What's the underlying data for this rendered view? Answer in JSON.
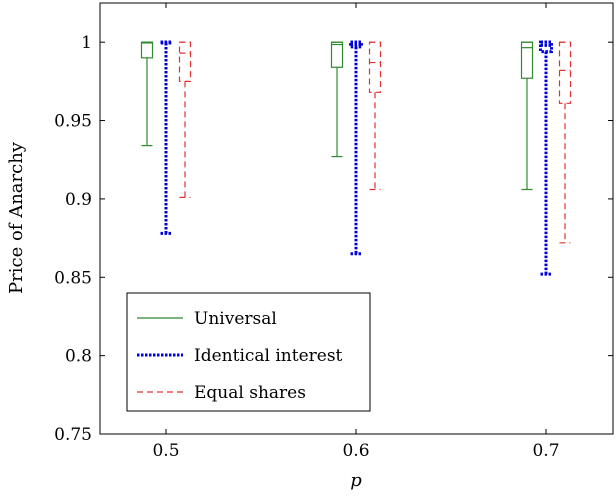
{
  "chart_data": {
    "type": "boxplot",
    "xlabel": "p",
    "ylabel": "Price of Anarchy",
    "ylim": [
      0.75,
      1.025
    ],
    "yticks": [
      0.75,
      0.8,
      0.85,
      0.9,
      0.95,
      1
    ],
    "ytick_labels": [
      "0.75",
      "0.8",
      "0.85",
      "0.9",
      "0.95",
      "1"
    ],
    "categories": [
      "0.5",
      "0.6",
      "0.7"
    ],
    "legend_position": "bottom-left",
    "series": [
      {
        "name": "Universal",
        "color": "#2e8b2e",
        "line_style": "solid",
        "boxes": [
          {
            "min": 0.934,
            "q1": 0.99,
            "median": 0.9995,
            "q3": 1.0,
            "max": 1.0
          },
          {
            "min": 0.927,
            "q1": 0.984,
            "median": 0.9985,
            "q3": 1.0,
            "max": 1.0
          },
          {
            "min": 0.906,
            "q1": 0.977,
            "median": 0.9965,
            "q3": 1.0,
            "max": 1.0
          }
        ]
      },
      {
        "name": "Identical interest",
        "color": "#0000dd",
        "line_style": "dotted",
        "boxes": [
          {
            "min": 0.878,
            "q1": 0.9995,
            "median": 0.9998,
            "q3": 1.0,
            "max": 1.0
          },
          {
            "min": 0.865,
            "q1": 0.997,
            "median": 0.9985,
            "q3": 1.0,
            "max": 1.0
          },
          {
            "min": 0.852,
            "q1": 0.994,
            "median": 0.998,
            "q3": 1.0,
            "max": 1.0
          }
        ]
      },
      {
        "name": "Equal shares",
        "color": "#e03030",
        "line_style": "dashed",
        "boxes": [
          {
            "min": 0.901,
            "q1": 0.975,
            "median": 0.993,
            "q3": 1.0,
            "max": 1.0
          },
          {
            "min": 0.906,
            "q1": 0.968,
            "median": 0.987,
            "q3": 1.0,
            "max": 1.0
          },
          {
            "min": 0.872,
            "q1": 0.961,
            "median": 0.982,
            "q3": 1.0,
            "max": 1.0
          }
        ]
      }
    ]
  }
}
